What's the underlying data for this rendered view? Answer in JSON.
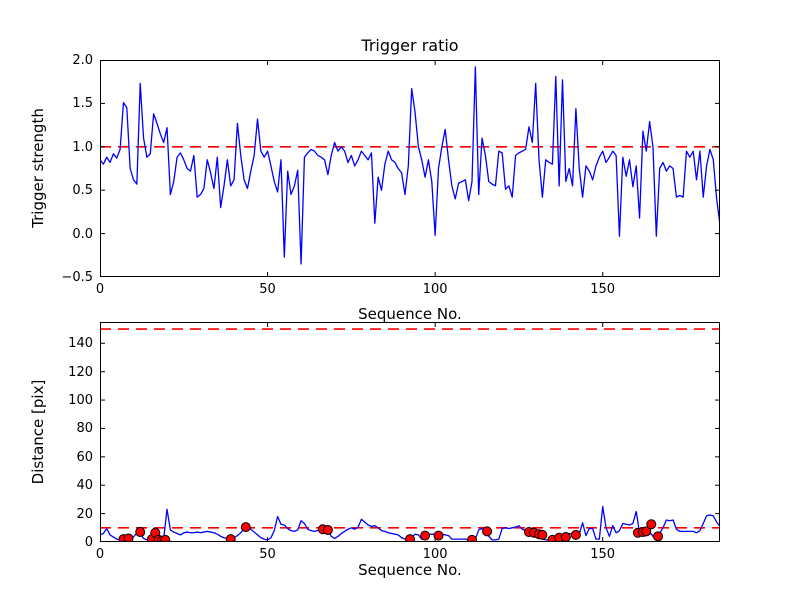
{
  "figure": {
    "background": "#ffffff",
    "colors": {
      "line": "#0000ff",
      "threshold": "#ff0000",
      "marker_face": "#ff0000",
      "marker_edge": "#000000",
      "axis": "#000000",
      "text": "#000000"
    }
  },
  "chart_data": [
    {
      "type": "line",
      "title": "Trigger ratio",
      "xlabel": "Sequence No.",
      "ylabel": "Trigger strength",
      "xlim": [
        0,
        185
      ],
      "ylim": [
        -0.5,
        2.0
      ],
      "xticks": [
        0,
        50,
        100,
        150
      ],
      "xtick_labels": [
        "0",
        "50",
        "100",
        "150"
      ],
      "yticks": [
        2.0,
        1.5,
        1.0,
        0.5,
        0.0,
        -0.5
      ],
      "ytick_labels": [
        "2.0",
        "1.5",
        "1.0",
        "0.5",
        "0.0",
        "−0.5"
      ],
      "grid": false,
      "legend": null,
      "thresholds": [
        1.0
      ],
      "series": [
        {
          "name": "trigger strength",
          "color": "#0000ff",
          "x_start": 0,
          "x_step": 1,
          "y": [
            0.85,
            0.8,
            0.88,
            0.82,
            0.92,
            0.87,
            0.97,
            1.51,
            1.45,
            0.75,
            0.62,
            0.57,
            1.73,
            1.1,
            0.88,
            0.92,
            1.38,
            1.27,
            1.15,
            1.05,
            1.22,
            0.45,
            0.6,
            0.88,
            0.93,
            0.85,
            0.75,
            0.72,
            0.9,
            0.42,
            0.45,
            0.52,
            0.85,
            0.7,
            0.52,
            0.88,
            0.3,
            0.55,
            0.85,
            0.55,
            0.62,
            1.27,
            0.9,
            0.62,
            0.52,
            0.72,
            0.9,
            1.32,
            0.95,
            0.88,
            0.95,
            0.78,
            0.6,
            0.48,
            0.85,
            -0.27,
            0.72,
            0.45,
            0.55,
            0.73,
            -0.35,
            0.88,
            0.93,
            0.97,
            0.95,
            0.9,
            0.88,
            0.85,
            0.68,
            0.9,
            1.05,
            0.95,
            1.0,
            0.95,
            0.82,
            0.9,
            0.78,
            0.85,
            0.95,
            0.9,
            0.85,
            0.93,
            0.12,
            0.65,
            0.5,
            0.8,
            0.95,
            0.85,
            0.82,
            0.75,
            0.7,
            0.45,
            0.78,
            1.67,
            1.4,
            1.0,
            0.85,
            0.65,
            0.85,
            0.6,
            -0.02,
            0.75,
            1.0,
            1.2,
            0.85,
            0.55,
            0.4,
            0.58,
            0.6,
            0.62,
            0.38,
            0.6,
            1.92,
            0.45,
            1.1,
            0.9,
            0.6,
            0.57,
            0.55,
            0.95,
            0.93,
            0.51,
            0.55,
            0.42,
            0.9,
            0.93,
            0.95,
            0.97,
            1.23,
            1.05,
            1.73,
            0.85,
            0.42,
            0.85,
            0.82,
            0.8,
            1.81,
            0.55,
            1.77,
            0.6,
            0.75,
            0.55,
            1.44,
            0.75,
            0.42,
            0.78,
            0.72,
            0.62,
            0.78,
            0.88,
            0.95,
            0.82,
            0.88,
            0.95,
            0.9,
            -0.03,
            0.88,
            0.66,
            0.85,
            0.54,
            0.78,
            0.18,
            1.18,
            0.95,
            1.29,
            1.0,
            -0.03,
            0.75,
            0.82,
            0.72,
            0.78,
            0.75,
            0.42,
            0.44,
            0.42,
            0.95,
            0.88,
            0.95,
            0.62,
            0.95,
            0.42,
            0.78,
            0.97,
            0.85,
            0.4,
            0.1
          ]
        }
      ]
    },
    {
      "type": "line+scatter",
      "title": "",
      "xlabel": "Sequence No.",
      "ylabel": "Distance [pix]",
      "xlim": [
        0,
        185
      ],
      "ylim": [
        0,
        155
      ],
      "xticks": [
        0,
        50,
        100,
        150
      ],
      "xtick_labels": [
        "0",
        "50",
        "100",
        "150"
      ],
      "yticks": [
        0,
        20,
        40,
        60,
        80,
        100,
        120,
        140
      ],
      "ytick_labels": [
        "0",
        "20",
        "40",
        "60",
        "80",
        "100",
        "120",
        "140"
      ],
      "grid": false,
      "legend": null,
      "thresholds": [
        150,
        10
      ],
      "series": [
        {
          "name": "distance",
          "color": "#0000ff",
          "x_start": 0,
          "x_step": 1,
          "y": [
            5,
            6,
            9.5,
            5,
            3.5,
            2,
            1.5,
            2,
            1.5,
            2.5,
            3.5,
            6.5,
            6,
            2.5,
            1.5,
            2,
            5.5,
            2,
            1.5,
            2.5,
            23,
            8.5,
            7,
            6,
            5,
            6.5,
            7,
            6.5,
            6.5,
            7,
            6.5,
            7,
            7.5,
            7,
            6.5,
            5.5,
            4,
            3,
            2.5,
            2.5,
            3,
            4.5,
            6.5,
            9.5,
            10.5,
            9,
            7,
            5,
            3,
            2,
            1.5,
            3,
            8,
            18,
            12.5,
            12,
            9.5,
            8,
            7.5,
            8.5,
            15,
            13,
            9,
            8,
            7.5,
            8,
            12,
            9.5,
            8.5,
            4,
            2.5,
            4,
            6,
            7.5,
            9,
            10,
            9,
            10.5,
            16,
            14,
            12,
            11,
            11.5,
            10,
            8,
            7.5,
            6.5,
            6,
            5.5,
            5,
            3,
            2,
            2,
            3,
            5.5,
            5,
            2,
            3,
            5.5,
            5.5,
            5.5,
            5.5,
            5.5,
            5,
            4.5,
            2,
            2,
            2,
            2,
            2,
            1.5,
            1.5,
            2,
            8.5,
            9.5,
            8.5,
            4,
            1.5,
            1.5,
            2,
            9.5,
            10,
            9.5,
            10,
            10.5,
            11.5,
            9,
            8,
            7,
            6.5,
            5.5,
            5,
            2,
            1.5,
            1.5,
            1.5,
            2,
            3,
            4,
            3.5,
            6,
            5.5,
            5,
            5.5,
            13.5,
            4.5,
            9.5,
            9.5,
            2,
            2,
            25,
            10,
            4,
            11.5,
            6.5,
            8,
            13,
            12.5,
            12,
            13,
            21.5,
            6.5,
            7,
            7,
            7,
            4,
            3.5,
            6,
            10,
            15.5,
            15,
            15.5,
            9,
            7.5,
            7.5,
            7.5,
            7.5,
            7.5,
            6.5,
            8,
            13,
            18.5,
            19,
            18.5,
            14,
            11
          ]
        }
      ],
      "scatter": {
        "name": "trigger events",
        "color": "#ff0000",
        "points": [
          [
            7,
            2
          ],
          [
            8.5,
            2.5
          ],
          [
            12,
            7
          ],
          [
            15.5,
            2
          ],
          [
            16.5,
            6.5
          ],
          [
            17.5,
            1.5
          ],
          [
            18.5,
            1
          ],
          [
            19.5,
            1.5
          ],
          [
            39,
            2
          ],
          [
            43.5,
            10.5
          ],
          [
            66.5,
            9
          ],
          [
            68,
            8.5
          ],
          [
            92.5,
            2
          ],
          [
            97,
            4.5
          ],
          [
            101,
            4.5
          ],
          [
            111,
            1.5
          ],
          [
            115.5,
            7.5
          ],
          [
            128,
            7
          ],
          [
            129.5,
            6.5
          ],
          [
            131,
            5.5
          ],
          [
            132,
            5
          ],
          [
            135,
            1.5
          ],
          [
            137,
            3
          ],
          [
            139,
            3.5
          ],
          [
            142,
            5
          ],
          [
            160.5,
            6.5
          ],
          [
            162,
            7
          ],
          [
            163,
            7.5
          ],
          [
            164.5,
            12.5
          ],
          [
            166.5,
            4
          ]
        ]
      }
    }
  ]
}
